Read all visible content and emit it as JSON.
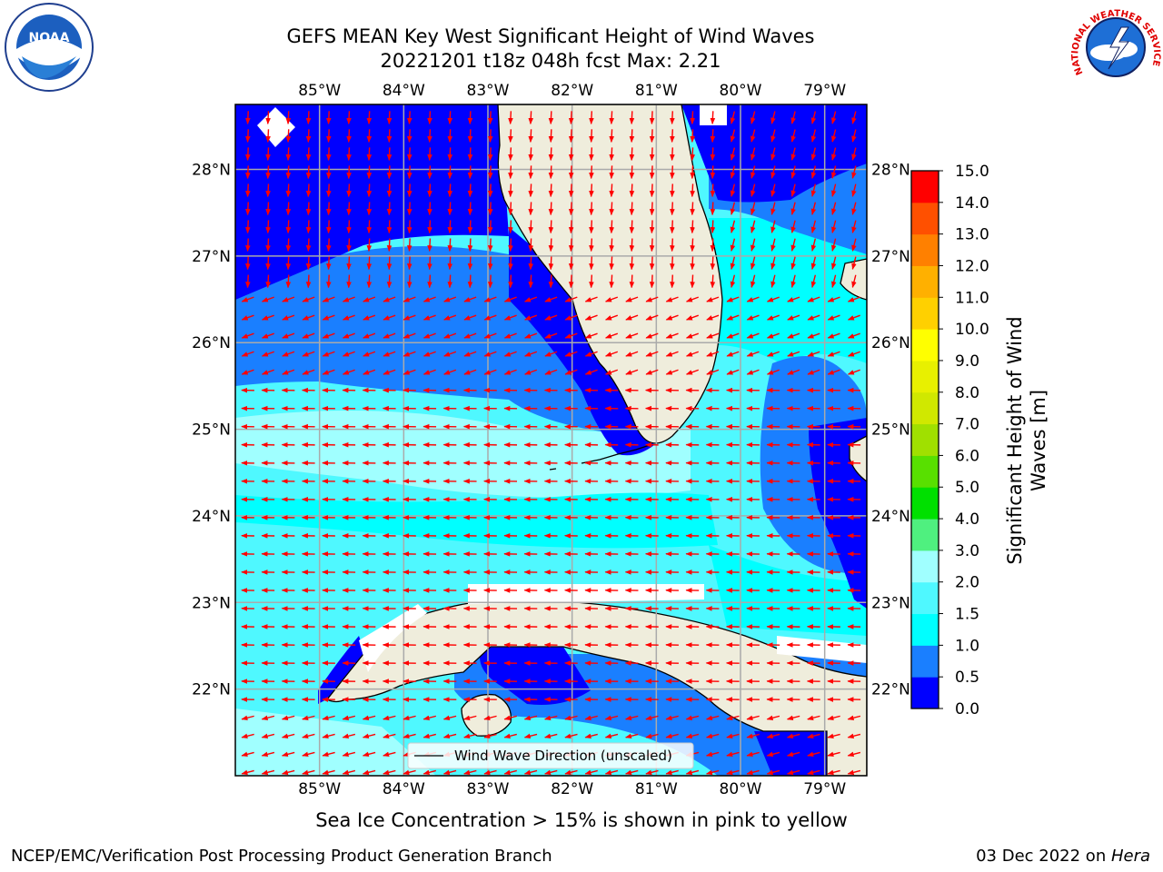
{
  "title": {
    "line1": "GEFS MEAN Key West Significant Height of Wind Waves",
    "line2": "20221201 t18z 048h fcst   Max: 2.21"
  },
  "map": {
    "lon_range": [
      -86.0,
      -78.5
    ],
    "lat_range": [
      21.0,
      28.75
    ],
    "lon_ticks": [
      {
        "value": -85,
        "label": "85°W"
      },
      {
        "value": -84,
        "label": "84°W"
      },
      {
        "value": -83,
        "label": "83°W"
      },
      {
        "value": -82,
        "label": "82°W"
      },
      {
        "value": -81,
        "label": "81°W"
      },
      {
        "value": -80,
        "label": "80°W"
      },
      {
        "value": -79,
        "label": "79°W"
      }
    ],
    "lat_ticks": [
      {
        "value": 28,
        "label": "28°N"
      },
      {
        "value": 27,
        "label": "27°N"
      },
      {
        "value": 26,
        "label": "26°N"
      },
      {
        "value": 25,
        "label": "25°N"
      },
      {
        "value": 24,
        "label": "24°N"
      },
      {
        "value": 23,
        "label": "23°N"
      },
      {
        "value": 22,
        "label": "22°N"
      }
    ],
    "legend_label": "Wind Wave Direction (unscaled)",
    "arrow_color": "#ff0000",
    "land_color": "#efeddc",
    "grid": true
  },
  "colorbar": {
    "label_line1": "Significant Height of Wind",
    "label_line2": "Waves [m]",
    "levels": [
      "0.0",
      "0.5",
      "1.0",
      "1.5",
      "2.0",
      "3.0",
      "4.0",
      "5.0",
      "6.0",
      "7.0",
      "8.0",
      "9.0",
      "10.0",
      "11.0",
      "12.0",
      "13.0",
      "14.0",
      "15.0"
    ],
    "colors": [
      "#0000ff",
      "#1a7fff",
      "#00ffff",
      "#4ff8ff",
      "#a0ffff",
      "#4ff07f",
      "#00e000",
      "#58e000",
      "#a0e000",
      "#d0e800",
      "#e8f000",
      "#ffff00",
      "#ffd000",
      "#ffb000",
      "#ff8000",
      "#ff5000",
      "#ff0000"
    ]
  },
  "sea_ice_note": "Sea Ice Concentration > 15% is shown in pink to yellow",
  "footer": {
    "left": "NCEP/EMC/Verification Post Processing Product Generation Branch",
    "right_prefix": "03 Dec 2022 on ",
    "right_italic": "Hera"
  },
  "logos": {
    "left": {
      "icon": "noaa-logo",
      "text": "NOAA"
    },
    "right": {
      "icon": "nws-logo",
      "text": "NATIONAL WEATHER SERVICE"
    }
  }
}
